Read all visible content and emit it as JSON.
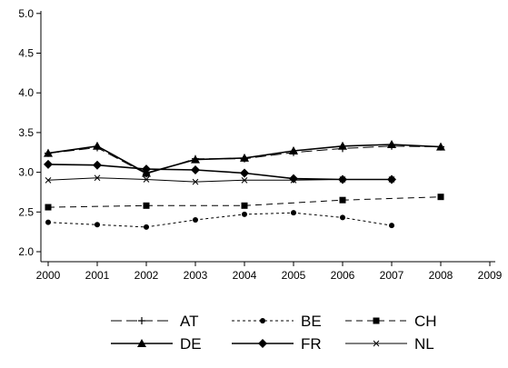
{
  "chart_data": {
    "type": "line",
    "title": "",
    "xlabel": "",
    "ylabel": "",
    "x": [
      2000,
      2001,
      2002,
      2003,
      2004,
      2005,
      2006,
      2007,
      2008,
      2009
    ],
    "xlim": [
      2000,
      2009
    ],
    "ylim": [
      2.0,
      5.0
    ],
    "x_ticks": [
      "2000",
      "2001",
      "2002",
      "2003",
      "2004",
      "2005",
      "2006",
      "2007",
      "2008",
      "2009"
    ],
    "y_ticks": [
      "2.0",
      "2.5",
      "3.0",
      "3.5",
      "4.0",
      "4.5",
      "5.0"
    ],
    "grid": false,
    "legend_position": "bottom",
    "series": [
      {
        "name": "AT",
        "marker": "plus",
        "dash": "long-dash",
        "color": "#000000",
        "points": [
          [
            2000,
            3.24
          ],
          [
            2001,
            3.31
          ],
          [
            2002,
            2.98
          ],
          [
            2003,
            3.17
          ],
          [
            2004,
            3.17
          ],
          [
            2005,
            3.25
          ],
          [
            2006,
            3.3
          ],
          [
            2007,
            3.33
          ],
          [
            2008,
            3.32
          ]
        ]
      },
      {
        "name": "BE",
        "marker": "circle",
        "dash": "short-dash",
        "color": "#000000",
        "points": [
          [
            2000,
            2.37
          ],
          [
            2001,
            2.34
          ],
          [
            2002,
            2.31
          ],
          [
            2003,
            2.4
          ],
          [
            2004,
            2.47
          ],
          [
            2005,
            2.49
          ],
          [
            2006,
            2.43
          ],
          [
            2007,
            2.33
          ]
        ]
      },
      {
        "name": "CH",
        "marker": "square",
        "dash": "dash",
        "color": "#000000",
        "points": [
          [
            2000,
            2.56
          ],
          [
            2002,
            2.58
          ],
          [
            2004,
            2.58
          ],
          [
            2006,
            2.65
          ],
          [
            2008,
            2.69
          ]
        ]
      },
      {
        "name": "DE",
        "marker": "triangle",
        "dash": "solid",
        "color": "#000000",
        "points": [
          [
            2000,
            3.24
          ],
          [
            2001,
            3.33
          ],
          [
            2002,
            2.99
          ],
          [
            2003,
            3.16
          ],
          [
            2004,
            3.18
          ],
          [
            2005,
            3.27
          ],
          [
            2006,
            3.33
          ],
          [
            2007,
            3.35
          ],
          [
            2008,
            3.32
          ]
        ]
      },
      {
        "name": "FR",
        "marker": "diamond",
        "dash": "solid",
        "color": "#000000",
        "points": [
          [
            2000,
            3.1
          ],
          [
            2001,
            3.09
          ],
          [
            2002,
            3.04
          ],
          [
            2003,
            3.03
          ],
          [
            2004,
            2.99
          ],
          [
            2005,
            2.92
          ],
          [
            2006,
            2.91
          ],
          [
            2007,
            2.91
          ]
        ]
      },
      {
        "name": "NL",
        "marker": "x",
        "dash": "solid-thin",
        "color": "#000000",
        "points": [
          [
            2000,
            2.9
          ],
          [
            2001,
            2.93
          ],
          [
            2002,
            2.91
          ],
          [
            2003,
            2.88
          ],
          [
            2004,
            2.9
          ],
          [
            2005,
            2.9
          ],
          [
            2006,
            2.91
          ],
          [
            2007,
            2.91
          ]
        ]
      }
    ]
  }
}
